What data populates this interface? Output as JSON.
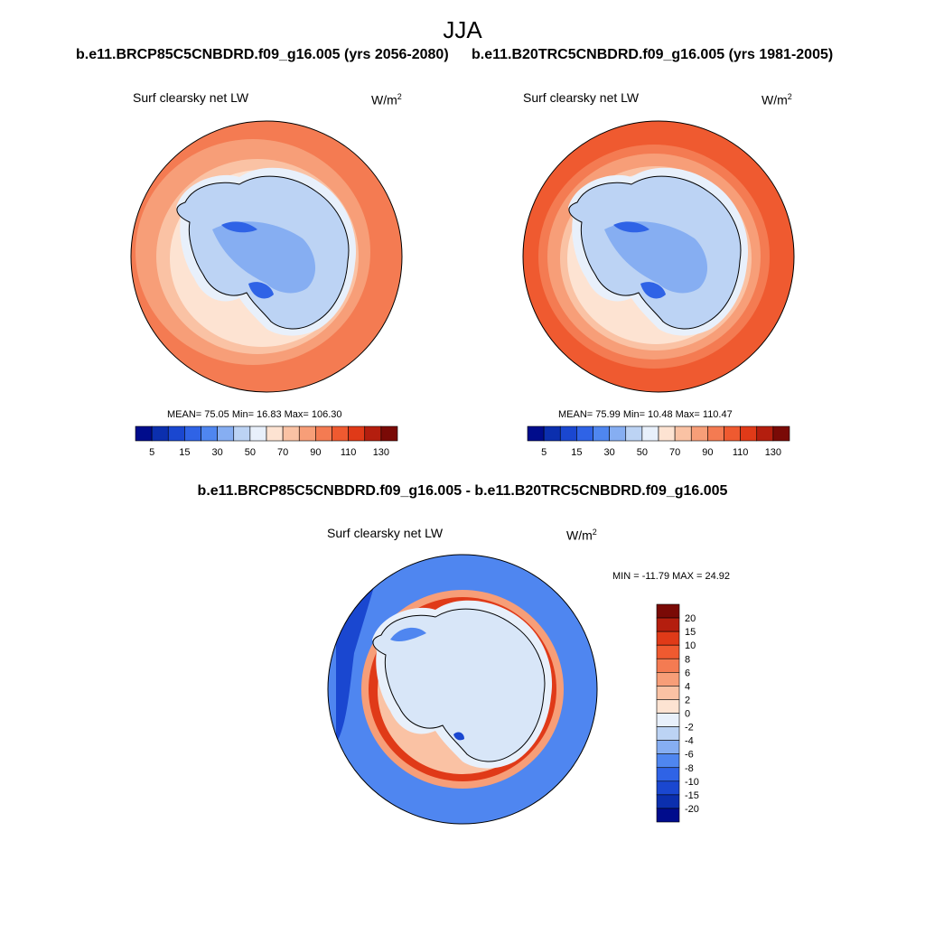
{
  "title": "JJA",
  "case_left": "b.e11.BRCP85C5CNBDRD.f09_g16.005 (yrs 2056-2080)",
  "case_right": "b.e11.B20TRC5CNBDRD.f09_g16.005 (yrs 1981-2005)",
  "diff_title": "b.e11.BRCP85C5CNBDRD.f09_g16.005 - b.e11.B20TRC5CNBDRD.f09_g16.005",
  "panels": {
    "left": {
      "variable": "Surf clearsky net LW",
      "unit": "W/m",
      "unit_exp": "2",
      "stats": "MEAN=  75.05  Min=  16.83  Max= 106.30"
    },
    "right": {
      "variable": "Surf clearsky net LW",
      "unit": "W/m",
      "unit_exp": "2",
      "stats": "MEAN=  75.99  Min=  10.48  Max= 110.47"
    },
    "diff": {
      "variable": "Surf clearsky net LW",
      "unit": "W/m",
      "unit_exp": "2",
      "stats": "MIN = -11.79 MAX =  24.92"
    }
  },
  "colorbars": {
    "abs": {
      "colors": [
        "#000c8c",
        "#0b2fae",
        "#1a47d0",
        "#2f63e6",
        "#4f86f0",
        "#86aef2",
        "#bcd3f4",
        "#e8f0fb",
        "#fde3d2",
        "#fac2a4",
        "#f79e78",
        "#f47b52",
        "#ef5a30",
        "#e03a18",
        "#b41e0e",
        "#7a0a06"
      ],
      "tick_labels": [
        "5",
        "15",
        "30",
        "50",
        "70",
        "90",
        "110",
        "130"
      ]
    },
    "diff": {
      "colors": [
        "#7a0a06",
        "#b41e0e",
        "#e03a18",
        "#ef5a30",
        "#f47b52",
        "#f79e78",
        "#fac2a4",
        "#fde3d2",
        "#e8f0fb",
        "#bcd3f4",
        "#86aef2",
        "#4f86f0",
        "#2f63e6",
        "#1a47d0",
        "#0b2fae",
        "#000c8c"
      ],
      "labels": [
        "20",
        "15",
        "10",
        "8",
        "6",
        "4",
        "2",
        "0",
        "-2",
        "-4",
        "-6",
        "-8",
        "-10",
        "-15",
        "-20"
      ]
    }
  },
  "map_colors": {
    "ocean_left": "#f47b52",
    "ocean_right": "#ef5a30",
    "ring_far": "#f79e78",
    "ring_mid": "#fac2a4",
    "ring_near": "#fde3d2",
    "ice_edge": "#e8f0fb",
    "land": "#bcd3f4",
    "land_low": "#86aef2",
    "land_deep": "#2f63e6",
    "diff_ocean": "#4f86f0",
    "diff_ring": "#e03a18",
    "diff_ring_soft": "#f79e78",
    "diff_land": "#d8e6f8",
    "diff_deep": "#1a47d0"
  }
}
